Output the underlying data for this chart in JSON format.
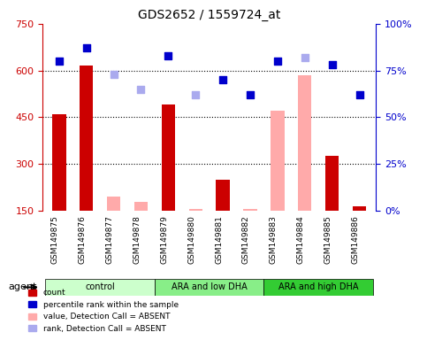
{
  "title": "GDS2652 / 1559724_at",
  "samples": [
    "GSM149875",
    "GSM149876",
    "GSM149877",
    "GSM149878",
    "GSM149879",
    "GSM149880",
    "GSM149881",
    "GSM149882",
    "GSM149883",
    "GSM149884",
    "GSM149885",
    "GSM149886"
  ],
  "groups": [
    {
      "label": "control",
      "start": 0,
      "end": 4,
      "color": "#ccffcc"
    },
    {
      "label": "ARA and low DHA",
      "start": 4,
      "end": 8,
      "color": "#88ee88"
    },
    {
      "label": "ARA and high DHA",
      "start": 8,
      "end": 12,
      "color": "#33cc33"
    }
  ],
  "count_values": [
    460,
    615,
    null,
    null,
    490,
    null,
    250,
    null,
    null,
    null,
    325,
    165
  ],
  "count_absent": [
    null,
    null,
    195,
    180,
    null,
    155,
    null,
    155,
    470,
    585,
    null,
    null
  ],
  "percentile_rank": [
    80,
    87,
    null,
    null,
    83,
    null,
    70,
    62,
    80,
    null,
    78,
    62
  ],
  "rank_absent": [
    null,
    null,
    73,
    65,
    null,
    62,
    null,
    null,
    null,
    82,
    null,
    null
  ],
  "ylim_left": [
    150,
    750
  ],
  "ylim_right": [
    0,
    100
  ],
  "yticks_left": [
    150,
    300,
    450,
    600,
    750
  ],
  "yticks_right": [
    0,
    25,
    50,
    75,
    100
  ],
  "bar_width": 0.5,
  "count_color": "#cc0000",
  "count_absent_color": "#ffaaaa",
  "rank_color": "#0000cc",
  "rank_absent_color": "#aaaaee",
  "grid_color": "#000000",
  "bg_color": "#ffffff",
  "plot_bg_color": "#ffffff",
  "legend_items": [
    {
      "label": "count",
      "color": "#cc0000",
      "marker": "s"
    },
    {
      "label": "percentile rank within the sample",
      "color": "#0000cc",
      "marker": "s"
    },
    {
      "label": "value, Detection Call = ABSENT",
      "color": "#ffaaaa",
      "marker": "s"
    },
    {
      "label": "rank, Detection Call = ABSENT",
      "color": "#aaaaee",
      "marker": "s"
    }
  ],
  "xlabel_area_color": "#dddddd",
  "agent_label": "agent",
  "left_spine_color": "#cc0000",
  "right_spine_color": "#0000cc"
}
